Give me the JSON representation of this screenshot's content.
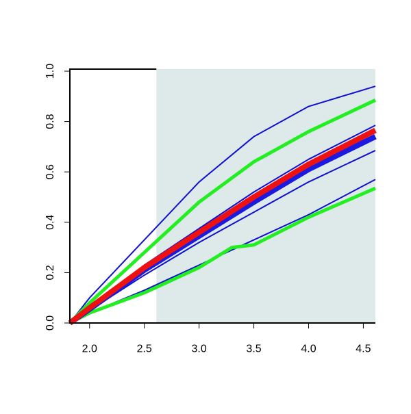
{
  "chart_data": {
    "type": "line",
    "x": [
      1.82,
      2.0,
      2.5,
      3.0,
      3.3,
      3.5,
      4.0,
      4.61
    ],
    "xlim": [
      1.82,
      4.61
    ],
    "ylim": [
      0,
      1.0
    ],
    "xticks": [
      {
        "value": 2,
        "label": "2.0"
      },
      2.5,
      {
        "value": 3,
        "label": "3.0"
      },
      3.5,
      {
        "value": 4,
        "label": "4.0"
      },
      4.5
    ],
    "yticks": [
      {
        "value": 0,
        "label": "0.0"
      },
      0.2,
      0.4,
      0.6,
      0.8,
      {
        "value": 1,
        "label": "1.0"
      }
    ],
    "shaded_region": [
      2.61,
      4.61
    ],
    "shade_color": "#deeaea",
    "series": [
      {
        "color": "#1010d0",
        "width": 2,
        "values": [
          0,
          0.1,
          0.33,
          0.56,
          0.668,
          0.74,
          0.86,
          0.94
        ]
      },
      {
        "color": "#1010d0",
        "width": 2,
        "values": [
          0,
          0.065,
          0.23,
          0.375,
          0.462,
          0.52,
          0.65,
          0.785
        ]
      },
      {
        "color": "#1010d0",
        "width": 2,
        "values": [
          0,
          0.05,
          0.19,
          0.32,
          0.392,
          0.44,
          0.56,
          0.685
        ]
      },
      {
        "color": "#1010d0",
        "width": 2,
        "values": [
          0,
          0.04,
          0.13,
          0.23,
          0.29,
          0.33,
          0.43,
          0.57
        ]
      },
      {
        "color": "#22ee22",
        "width": 5,
        "values": [
          0,
          0.08,
          0.28,
          0.48,
          0.576,
          0.64,
          0.76,
          0.885
        ]
      },
      {
        "color": "#22ee22",
        "width": 5,
        "values": [
          0,
          0.04,
          0.12,
          0.22,
          0.3,
          0.31,
          0.42,
          0.535
        ]
      },
      {
        "color": "#1a1ae0",
        "width": 8,
        "values": [
          0,
          0.055,
          0.21,
          0.345,
          0.426,
          0.48,
          0.61,
          0.74
        ]
      },
      {
        "color": "#ee1111",
        "width": 8,
        "values": [
          0,
          0.06,
          0.22,
          0.36,
          0.444,
          0.5,
          0.63,
          0.765
        ]
      }
    ]
  }
}
